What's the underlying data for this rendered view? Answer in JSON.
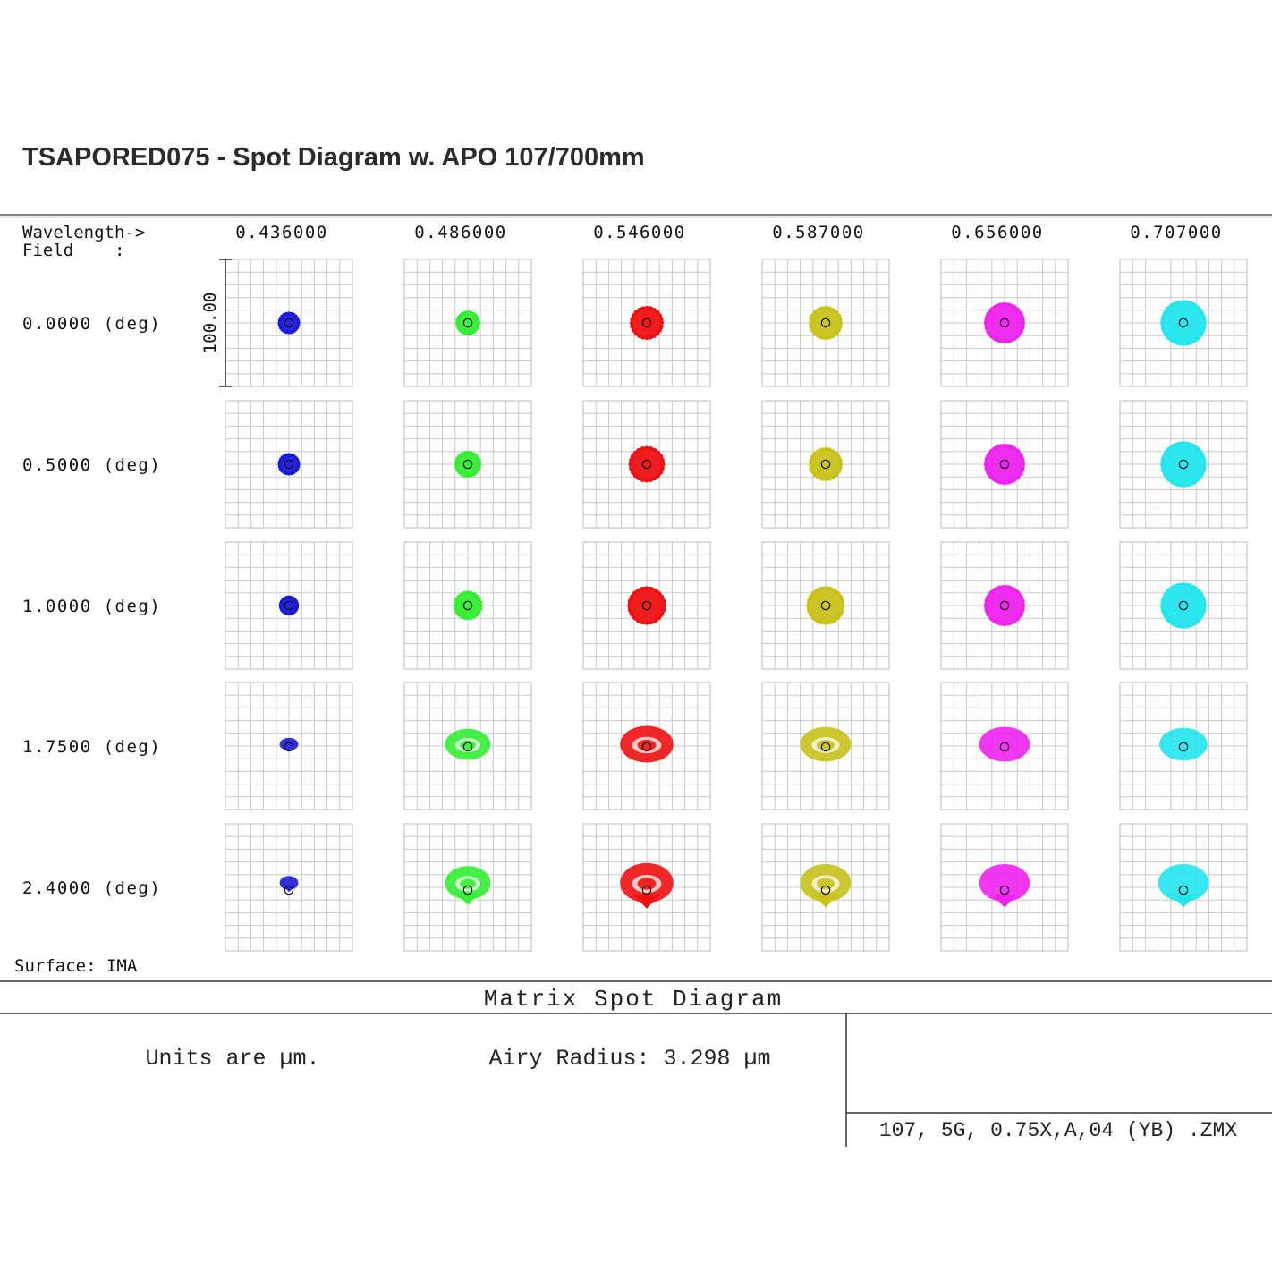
{
  "title": "TSAPORED075 - Spot Diagram w. APO 107/700mm",
  "chart_data": {
    "type": "scatter",
    "subtype": "matrix spot diagram",
    "header_label_wavelength": "Wavelength->",
    "header_label_field": "Field    :",
    "wavelengths": [
      "0.436000",
      "0.486000",
      "0.546000",
      "0.587000",
      "0.656000",
      "0.707000"
    ],
    "fields": [
      "0.0000 (deg)",
      "0.5000 (deg)",
      "1.0000 (deg)",
      "1.7500 (deg)",
      "2.4000 (deg)"
    ],
    "scale_bar_label": "100.00",
    "scale_bar_value": 100,
    "colors": [
      "#1a1adb",
      "#33ee33",
      "#ee1111",
      "#c8c21a",
      "#ee22ee",
      "#22e6ee"
    ],
    "spot_size_um": [
      [
        16,
        18,
        26,
        26,
        32,
        36
      ],
      [
        16,
        20,
        28,
        26,
        32,
        36
      ],
      [
        14,
        22,
        30,
        30,
        32,
        36
      ],
      [
        14,
        34,
        40,
        38,
        38,
        36
      ],
      [
        14,
        34,
        40,
        38,
        38,
        38
      ]
    ],
    "airy_radius_um": 3.298,
    "surface_label": "Surface: IMA",
    "footer_title": "Matrix Spot Diagram",
    "units_text": "Units are µm.",
    "airy_text": "Airy Radius: 3.298 µm",
    "file_name": "107, 5G, 0.75X,A,04 (YB) .ZMX"
  }
}
